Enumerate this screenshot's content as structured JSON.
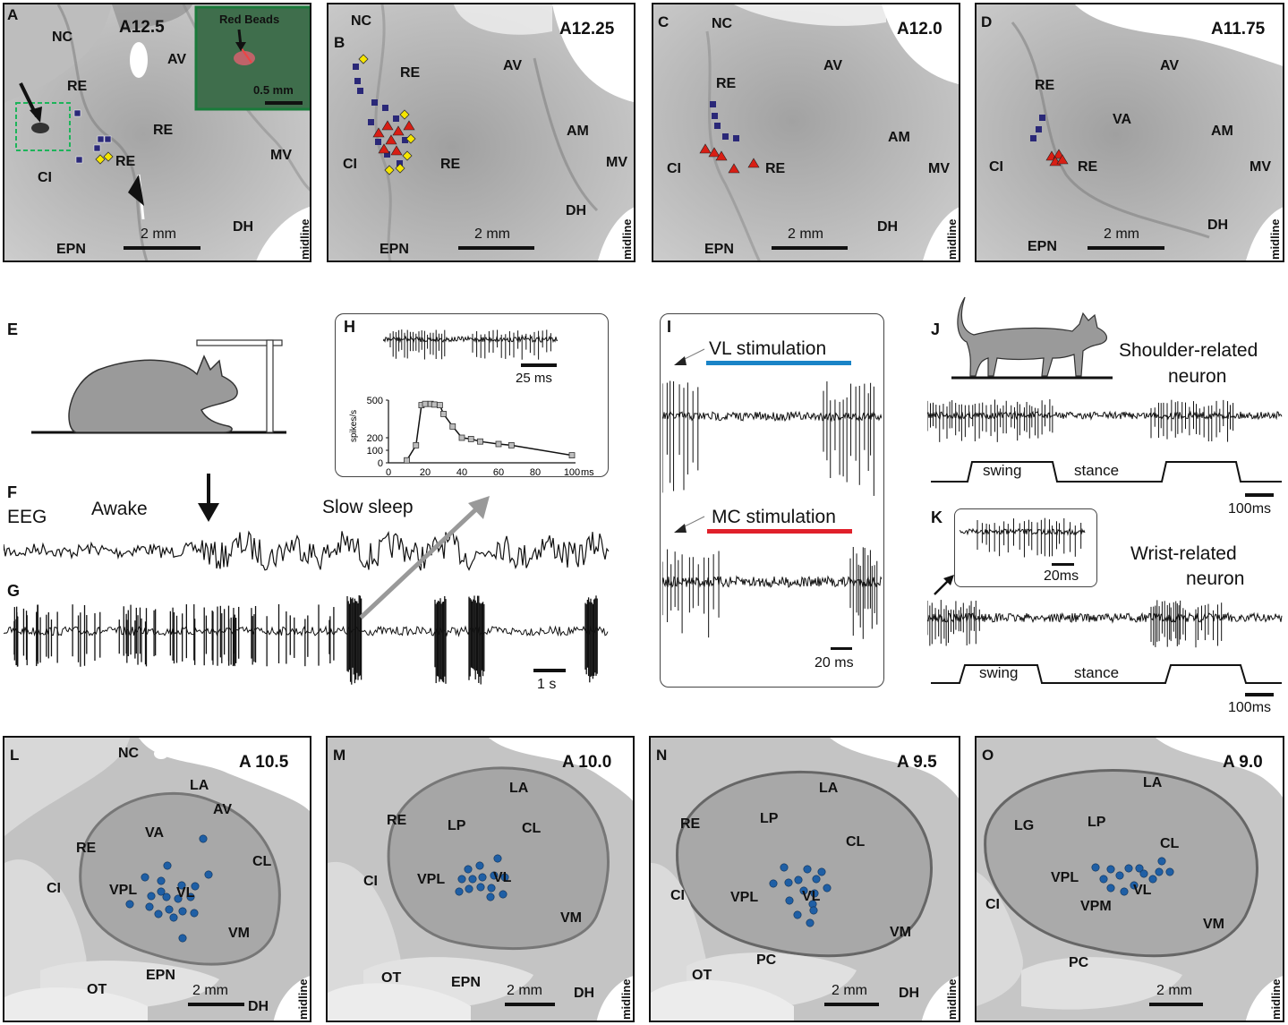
{
  "colors": {
    "blue": "#2a2878",
    "red": "#d81e14",
    "yellow": "#f5e500",
    "dotblue": "#1f5fa5",
    "vlbar": "#1a84c7",
    "mcbar": "#e0202a",
    "frame": "#1a7a3a"
  },
  "top": [
    {
      "letter": "A",
      "coord": "A12.5",
      "labels": {
        "nc": "NC",
        "av": "AV",
        "re1": "RE",
        "re2": "RE",
        "re3": "RE",
        "ci": "CI",
        "mv": "MV",
        "dh": "DH",
        "epn": "EPN"
      },
      "scale": "2 mm",
      "midline": "midline",
      "inset": {
        "title": "Red Beads",
        "scale": "0.5 mm"
      }
    },
    {
      "letter": "B",
      "coord": "A12.25",
      "labels": {
        "nc": "NC",
        "av": "AV",
        "re1": "RE",
        "re2": "RE",
        "am": "AM",
        "ci": "CI",
        "mv": "MV",
        "dh": "DH",
        "epn": "EPN"
      },
      "scale": "2 mm",
      "midline": "midline"
    },
    {
      "letter": "C",
      "coord": "A12.0",
      "labels": {
        "nc": "NC",
        "av": "AV",
        "re1": "RE",
        "re2": "RE",
        "am": "AM",
        "ci": "CI",
        "mv": "MV",
        "dh": "DH",
        "epn": "EPN"
      },
      "scale": "2 mm",
      "midline": "midline"
    },
    {
      "letter": "D",
      "coord": "A11.75",
      "labels": {
        "av": "AV",
        "re1": "RE",
        "re2": "RE",
        "va": "VA",
        "am": "AM",
        "ci": "CI",
        "mv": "MV",
        "dh": "DH",
        "epn": "EPN"
      },
      "scale": "2 mm",
      "midline": "midline"
    }
  ],
  "mid": {
    "e": "E",
    "f": {
      "letter": "F",
      "eeg": "EEG",
      "awake": "Awake",
      "slow": "Slow sleep"
    },
    "g": {
      "letter": "G",
      "scale": "1 s"
    },
    "h": {
      "letter": "H",
      "scale": "25 ms",
      "ylabel": "spikes/s",
      "xunit": "ms",
      "yticks": [
        "500",
        "200",
        "100",
        "0"
      ],
      "xticks": [
        "0",
        "20",
        "40",
        "60",
        "80",
        "100"
      ]
    },
    "i": {
      "letter": "I",
      "vl": "VL stimulation",
      "mc": "MC stimulation",
      "scale": "20 ms"
    },
    "j": {
      "letter": "J",
      "title1": "Shoulder-related",
      "title2": "neuron",
      "swing": "swing",
      "stance": "stance",
      "scale": "100ms"
    },
    "k": {
      "letter": "K",
      "title1": "Wrist-related",
      "title2": "neuron",
      "swing": "swing",
      "stance": "stance",
      "scale": "100ms",
      "inset_scale": "20ms"
    }
  },
  "bottom": [
    {
      "letter": "L",
      "coord": "A 10.5",
      "labels": {
        "nc": "NC",
        "la": "LA",
        "av": "AV",
        "va": "VA",
        "re": "RE",
        "cl": "CL",
        "ci": "CI",
        "vpl": "VPL",
        "vl": "VL",
        "vm": "VM",
        "epn": "EPN",
        "ot": "OT",
        "dh": "DH"
      },
      "scale": "2 mm",
      "midline": "midline"
    },
    {
      "letter": "M",
      "coord": "A 10.0",
      "labels": {
        "la": "LA",
        "re": "RE",
        "lp": "LP",
        "cl": "CL",
        "ci": "CI",
        "vpl": "VPL",
        "vl": "VL",
        "vm": "VM",
        "ot": "OT",
        "epn": "EPN",
        "dh": "DH"
      },
      "scale": "2 mm",
      "midline": "midline"
    },
    {
      "letter": "N",
      "coord": "A 9.5",
      "labels": {
        "la": "LA",
        "re": "RE",
        "lp": "LP",
        "cl": "CL",
        "ci": "CI",
        "vpl": "VPL",
        "vl": "VL",
        "vm": "VM",
        "pc": "PC",
        "ot": "OT",
        "dh": "DH"
      },
      "scale": "2 mm",
      "midline": "midline"
    },
    {
      "letter": "O",
      "coord": "A 9.0",
      "labels": {
        "la": "LA",
        "lg": "LG",
        "lp": "LP",
        "cl": "CL",
        "ci": "CI",
        "vpl": "VPL",
        "vl": "VL",
        "vpm": "VPM",
        "vm": "VM",
        "pc": "PC"
      },
      "scale": "2 mm",
      "midline": "midline"
    }
  ],
  "h_curve": {
    "x": [
      10,
      15,
      18,
      20,
      23,
      25,
      28,
      30,
      35,
      40,
      45,
      50,
      60,
      67,
      100
    ],
    "y": [
      20,
      140,
      460,
      470,
      470,
      465,
      460,
      390,
      290,
      200,
      190,
      170,
      150,
      140,
      60
    ]
  }
}
